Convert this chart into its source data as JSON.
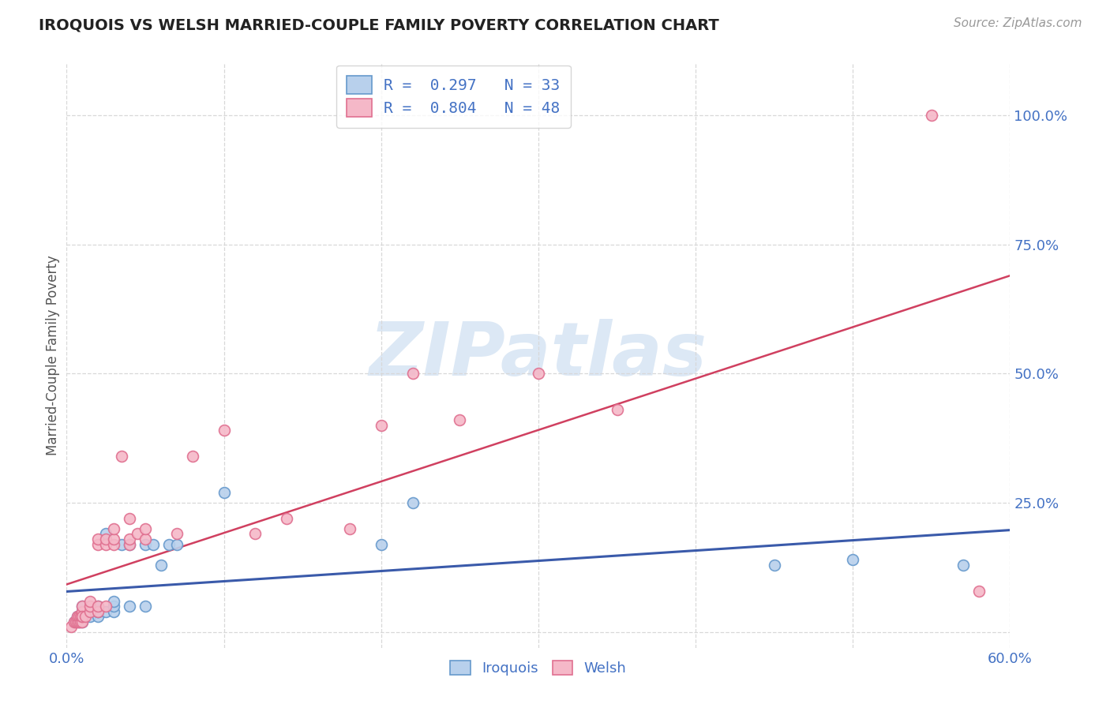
{
  "title": "IROQUOIS VS WELSH MARRIED-COUPLE FAMILY POVERTY CORRELATION CHART",
  "source": "Source: ZipAtlas.com",
  "ylabel": "Married-Couple Family Poverty",
  "xlim": [
    0.0,
    0.6
  ],
  "ylim": [
    -0.03,
    1.1
  ],
  "yticks": [
    0.0,
    0.25,
    0.5,
    0.75,
    1.0
  ],
  "ytick_labels": [
    "",
    "25.0%",
    "50.0%",
    "75.0%",
    "100.0%"
  ],
  "xticks": [
    0.0,
    0.1,
    0.2,
    0.3,
    0.4,
    0.5,
    0.6
  ],
  "xtick_labels": [
    "0.0%",
    "",
    "",
    "",
    "",
    "",
    "60.0%"
  ],
  "background_color": "#ffffff",
  "grid_color": "#d8d8d8",
  "iroquois_facecolor": "#b8d0ec",
  "iroquois_edgecolor": "#6699cc",
  "welsh_facecolor": "#f5b8c8",
  "welsh_edgecolor": "#e07090",
  "line_iroquois_color": "#3a5aaa",
  "line_welsh_color": "#d04060",
  "legend_text_color": "#4472c4",
  "axis_label_color": "#4472c4",
  "title_color": "#222222",
  "source_color": "#999999",
  "watermark": "ZIPatlas",
  "watermark_color": "#dce8f5",
  "legend_iroquois": "R =  0.297   N = 33",
  "legend_welsh": "R =  0.804   N = 48",
  "iroquois_x": [
    0.005,
    0.007,
    0.008,
    0.008,
    0.01,
    0.01,
    0.01,
    0.01,
    0.015,
    0.02,
    0.02,
    0.02,
    0.02,
    0.025,
    0.025,
    0.03,
    0.03,
    0.03,
    0.035,
    0.04,
    0.04,
    0.05,
    0.05,
    0.055,
    0.06,
    0.065,
    0.07,
    0.1,
    0.2,
    0.22,
    0.45,
    0.5,
    0.57
  ],
  "iroquois_y": [
    0.02,
    0.03,
    0.02,
    0.03,
    0.02,
    0.03,
    0.04,
    0.05,
    0.03,
    0.03,
    0.04,
    0.05,
    0.04,
    0.04,
    0.19,
    0.04,
    0.05,
    0.06,
    0.17,
    0.05,
    0.17,
    0.05,
    0.17,
    0.17,
    0.13,
    0.17,
    0.17,
    0.27,
    0.17,
    0.25,
    0.13,
    0.14,
    0.13
  ],
  "welsh_x": [
    0.003,
    0.005,
    0.006,
    0.007,
    0.007,
    0.008,
    0.008,
    0.009,
    0.009,
    0.01,
    0.01,
    0.01,
    0.01,
    0.01,
    0.012,
    0.015,
    0.015,
    0.015,
    0.02,
    0.02,
    0.02,
    0.02,
    0.025,
    0.025,
    0.025,
    0.03,
    0.03,
    0.03,
    0.035,
    0.04,
    0.04,
    0.04,
    0.045,
    0.05,
    0.05,
    0.07,
    0.08,
    0.1,
    0.12,
    0.14,
    0.18,
    0.2,
    0.22,
    0.25,
    0.3,
    0.35,
    0.55,
    0.58
  ],
  "welsh_y": [
    0.01,
    0.02,
    0.02,
    0.02,
    0.03,
    0.02,
    0.03,
    0.02,
    0.03,
    0.02,
    0.03,
    0.04,
    0.05,
    0.03,
    0.03,
    0.04,
    0.05,
    0.06,
    0.04,
    0.05,
    0.17,
    0.18,
    0.05,
    0.17,
    0.18,
    0.17,
    0.18,
    0.2,
    0.34,
    0.17,
    0.18,
    0.22,
    0.19,
    0.18,
    0.2,
    0.19,
    0.34,
    0.39,
    0.19,
    0.22,
    0.2,
    0.4,
    0.5,
    0.41,
    0.5,
    0.43,
    1.0,
    0.08
  ]
}
